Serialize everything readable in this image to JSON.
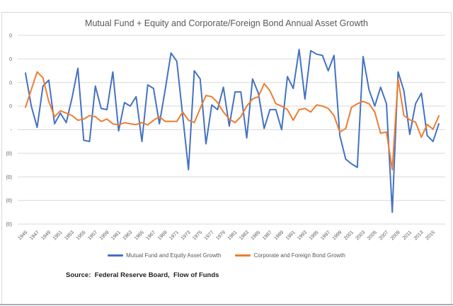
{
  "chart": {
    "source_note": "Source:  Federal Reserve Board,  Flow of Funds"
  },
  "chart_data": {
    "type": "line",
    "title": "Mutual Fund + Equity and Corporate/Foreign Bond Annual Asset Growth",
    "legend_position": "bottom",
    "gridlines": "horizontal",
    "categories": [
      1945,
      1946,
      1947,
      1948,
      1949,
      1950,
      1951,
      1952,
      1953,
      1954,
      1955,
      1956,
      1957,
      1958,
      1959,
      1960,
      1961,
      1962,
      1963,
      1964,
      1965,
      1966,
      1967,
      1968,
      1969,
      1970,
      1971,
      1972,
      1973,
      1974,
      1975,
      1976,
      1977,
      1978,
      1979,
      1980,
      1981,
      1982,
      1983,
      1984,
      1985,
      1986,
      1987,
      1988,
      1989,
      1990,
      1991,
      1992,
      1993,
      1994,
      1995,
      1996,
      1997,
      1998,
      1999,
      2000,
      2001,
      2002,
      2003,
      2004,
      2005,
      2006,
      2007,
      2008,
      2009,
      2010,
      2011,
      2012,
      2013,
      2014,
      2015,
      2016
    ],
    "x_tick_labels": [
      "1945",
      "1947",
      "1949",
      "1951",
      "1953",
      "1955",
      "1957",
      "1959",
      "1961",
      "1963",
      "1965",
      "1967",
      "1969",
      "1971",
      "1973",
      "1975",
      "1977",
      "1979",
      "1981",
      "1983",
      "1985",
      "1987",
      "1989",
      "1991",
      "1993",
      "1995",
      "1997",
      "1999",
      "2001",
      "2003",
      "2005",
      "2007",
      "2009",
      "2011",
      "2013",
      "2015"
    ],
    "y_axis": {
      "min": -0.4,
      "max": 0.4,
      "tick_values": [
        0.4,
        0.3,
        0.2,
        0.1,
        0.0,
        -0.1,
        -0.2,
        -0.3,
        -0.4
      ],
      "tick_labels": [
        "0",
        "0",
        "0",
        "0",
        "-",
        "(0)",
        "(0)",
        "(0)",
        "(0)"
      ]
    },
    "series": [
      {
        "name": "Mutual Fund and Equity Asset Growth",
        "color": "#4472C4",
        "values": [
          0.24,
          0.1,
          0.01,
          0.185,
          0.21,
          0.025,
          0.07,
          0.03,
          0.135,
          0.26,
          -0.045,
          -0.05,
          0.185,
          0.09,
          0.085,
          0.245,
          -0.005,
          0.115,
          0.1,
          0.14,
          -0.05,
          0.19,
          0.175,
          0.025,
          0.17,
          0.325,
          0.29,
          0.06,
          -0.17,
          0.25,
          0.215,
          -0.06,
          0.105,
          0.085,
          0.18,
          0.015,
          0.16,
          0.16,
          -0.035,
          0.215,
          0.155,
          0.005,
          0.085,
          0.085,
          0.0,
          0.225,
          0.175,
          0.34,
          0.13,
          0.335,
          0.32,
          0.315,
          0.25,
          0.315,
          -0.025,
          -0.125,
          -0.145,
          -0.16,
          0.31,
          0.17,
          0.1,
          0.18,
          0.11,
          -0.35,
          0.245,
          0.165,
          -0.02,
          0.11,
          0.155,
          -0.025,
          -0.05,
          0.025
        ]
      },
      {
        "name": "Corporate and Foreign Bond Growth",
        "color": "#ED7D31",
        "values": [
          0.095,
          0.17,
          0.245,
          0.22,
          0.12,
          0.055,
          0.08,
          0.07,
          0.06,
          0.04,
          0.045,
          0.06,
          0.055,
          0.035,
          0.045,
          0.025,
          0.02,
          0.03,
          0.025,
          0.022,
          0.03,
          0.02,
          0.04,
          0.055,
          0.035,
          0.035,
          0.035,
          0.075,
          0.04,
          0.03,
          0.09,
          0.145,
          0.14,
          0.115,
          0.075,
          0.045,
          0.03,
          0.055,
          0.1,
          0.13,
          0.14,
          0.195,
          0.165,
          0.11,
          0.1,
          0.085,
          0.04,
          0.085,
          0.09,
          0.075,
          0.105,
          0.1,
          0.09,
          0.06,
          -0.01,
          0.005,
          0.095,
          0.11,
          0.12,
          0.11,
          0.075,
          -0.015,
          -0.01,
          -0.17,
          0.215,
          0.06,
          0.042,
          0.032,
          -0.032,
          0.022,
          0.002,
          0.058
        ]
      }
    ]
  }
}
